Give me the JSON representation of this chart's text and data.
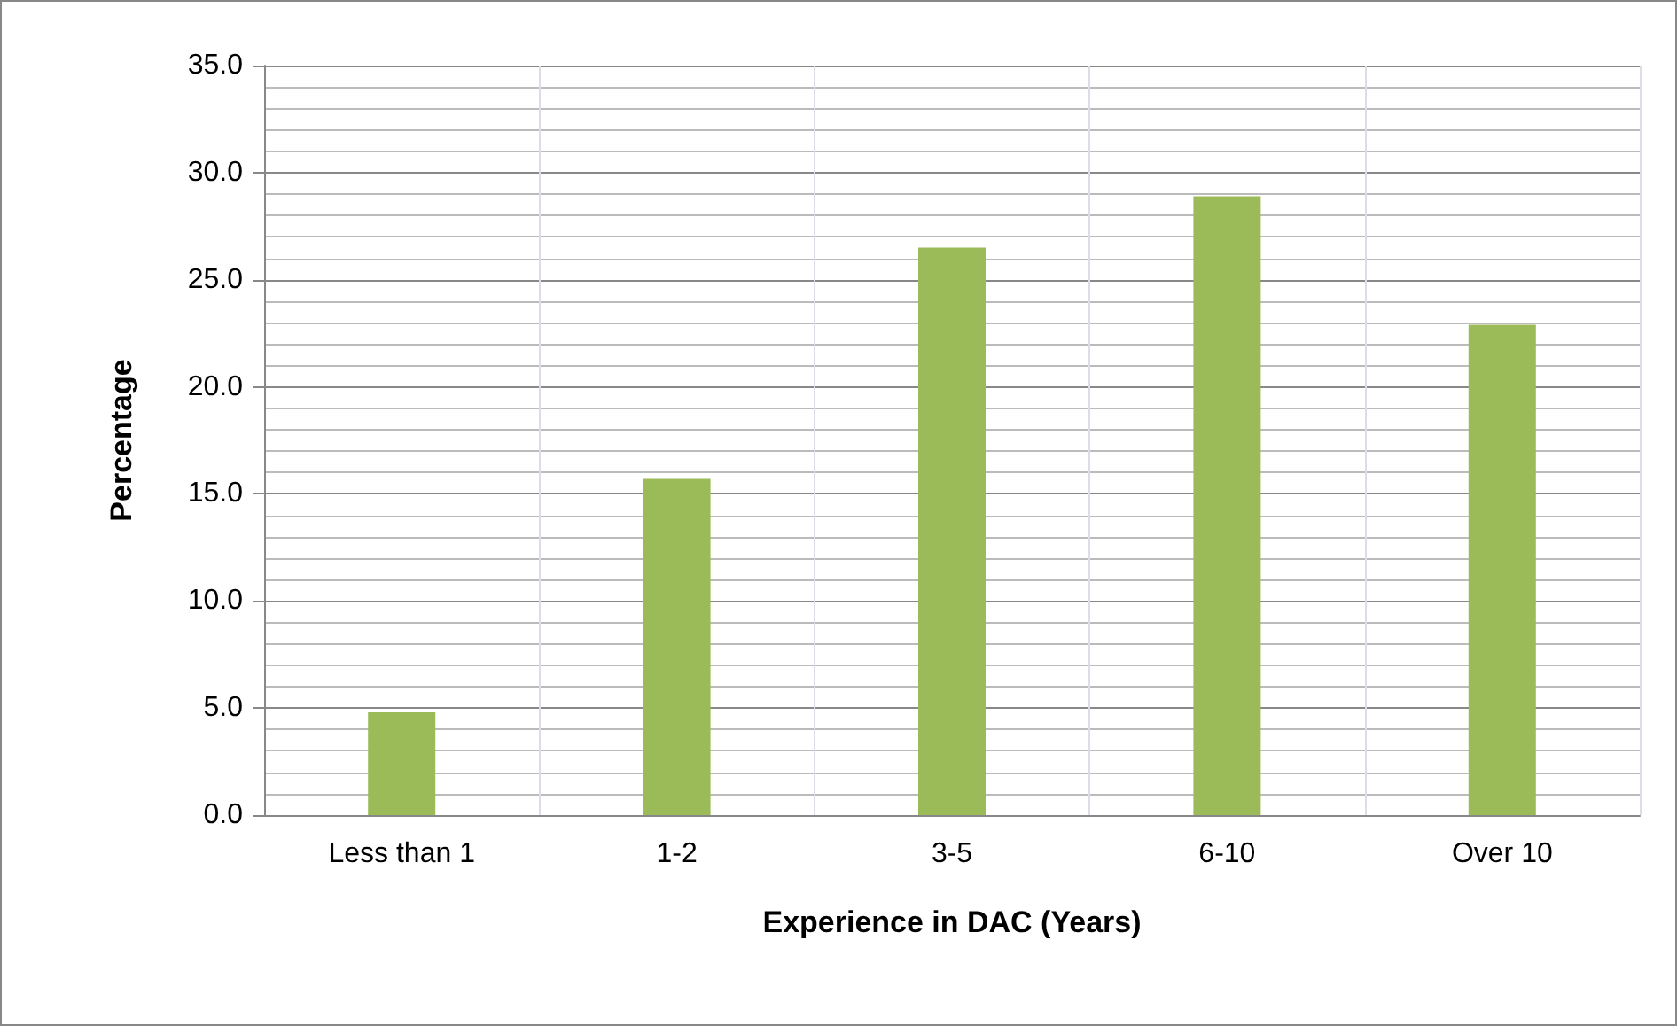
{
  "chart_data": {
    "type": "bar",
    "xlabel": "Experience in DAC (Years)",
    "ylabel": "Percentage",
    "categories": [
      "Less than 1",
      "1-2",
      "3-5",
      "6-10",
      "Over 10"
    ],
    "values": [
      4.8,
      15.7,
      26.5,
      28.9,
      22.9
    ],
    "color": "#9bbb59",
    "ylim": [
      0,
      35
    ],
    "yticks": [
      {
        "value": 0,
        "label": "0.0"
      },
      {
        "value": 5,
        "label": "5.0"
      },
      {
        "value": 10,
        "label": "10.0"
      },
      {
        "value": 15,
        "label": "15.0"
      },
      {
        "value": 20,
        "label": "20.0"
      },
      {
        "value": 25,
        "label": "25.0"
      },
      {
        "value": 30,
        "label": "30.0"
      },
      {
        "value": 35,
        "label": "35.0"
      }
    ],
    "grid": true
  }
}
